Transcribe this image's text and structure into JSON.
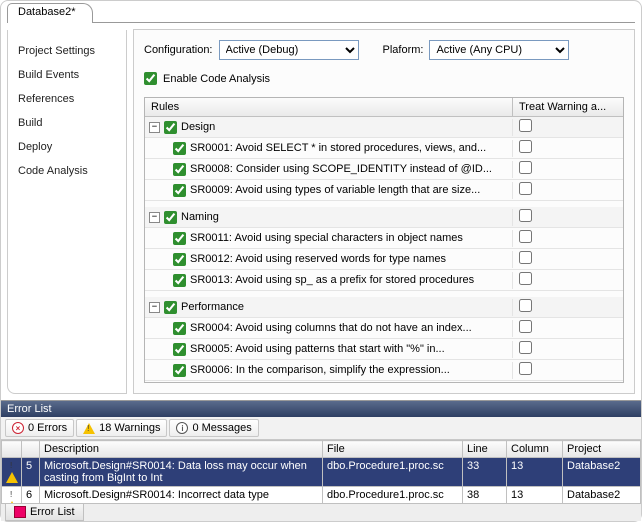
{
  "tab_title": "Database2*",
  "sidebar": {
    "items": [
      {
        "label": "Project Settings"
      },
      {
        "label": "Build Events"
      },
      {
        "label": "References"
      },
      {
        "label": "Build"
      },
      {
        "label": "Deploy"
      },
      {
        "label": "Code Analysis"
      }
    ]
  },
  "config_row": {
    "config_label": "Configuration:",
    "config_value": "Active (Debug)",
    "platform_label": "Plaform:",
    "platform_value": "Active (Any CPU)"
  },
  "enable_checkbox_label": "Enable Code Analysis",
  "rules_header": {
    "rules": "Rules",
    "treat": "Treat Warning a..."
  },
  "rules": {
    "groups": [
      {
        "name": "Design",
        "items": [
          {
            "text": "SR0001: Avoid SELECT * in stored procedures, views, and..."
          },
          {
            "text": "SR0008: Consider using SCOPE_IDENTITY instead of @ID..."
          },
          {
            "text": "SR0009: Avoid using types of variable length that are size..."
          }
        ]
      },
      {
        "name": "Naming",
        "items": [
          {
            "text": "SR0011: Avoid using special characters in object names"
          },
          {
            "text": "SR0012: Avoid using reserved words for type names"
          },
          {
            "text": "SR0013: Avoid using sp_ as a prefix for stored procedures"
          }
        ]
      },
      {
        "name": "Performance",
        "items": [
          {
            "text": "SR0004: Avoid using columns that do not have an index..."
          },
          {
            "text": "SR0005: Avoid using patterns that start with \"%\" in..."
          },
          {
            "text": "SR0006: In the comparison, simplify the expression..."
          }
        ]
      }
    ]
  },
  "error_list": {
    "title": "Error List",
    "filters": {
      "errors": "0 Errors",
      "warnings": "18 Warnings",
      "messages": "0 Messages"
    },
    "columns": {
      "blank": "",
      "num": "",
      "description": "Description",
      "file": "File",
      "line": "Line",
      "column": "Column",
      "project": "Project"
    },
    "rows": [
      {
        "n": "5",
        "desc": "Microsoft.Design#SR0014: Data loss may occur when casting from BigInt to Int",
        "file": "dbo.Procedure1.proc.sc",
        "line": "33",
        "col": "13",
        "proj": "Database2",
        "selected": true
      },
      {
        "n": "6",
        "desc": "Microsoft.Design#SR0014: Incorrect data type",
        "file": "dbo.Procedure1.proc.sc",
        "line": "38",
        "col": "13",
        "proj": "Database2",
        "selected": false
      }
    ],
    "bottom_tab": "Error List"
  }
}
